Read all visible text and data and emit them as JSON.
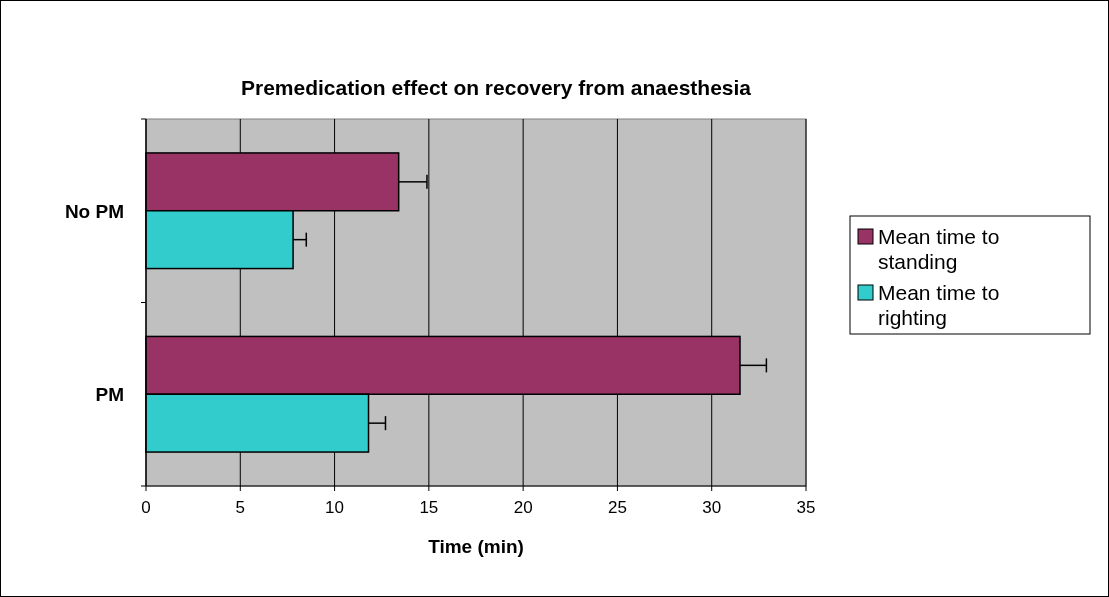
{
  "chart_data": {
    "type": "bar",
    "orientation": "horizontal",
    "title": "Premedication effect on recovery from anaesthesia",
    "xlabel": "Time (min)",
    "categories": [
      "No PM",
      "PM"
    ],
    "series": [
      {
        "name": "Mean time to standing",
        "color": "#993366",
        "values": [
          13.4,
          31.5
        ],
        "errors": [
          [
            13.4,
            14.9
          ],
          [
            31.5,
            32.9
          ]
        ]
      },
      {
        "name": "Mean time to righting",
        "color": "#33cccc",
        "values": [
          7.8,
          11.8
        ],
        "errors": [
          [
            7.8,
            8.5
          ],
          [
            11.8,
            12.7
          ]
        ]
      }
    ],
    "xlim": [
      0,
      35
    ],
    "xticks": [
      0,
      5,
      10,
      15,
      20,
      25,
      30,
      35
    ],
    "grid": "x",
    "legend": "right"
  }
}
